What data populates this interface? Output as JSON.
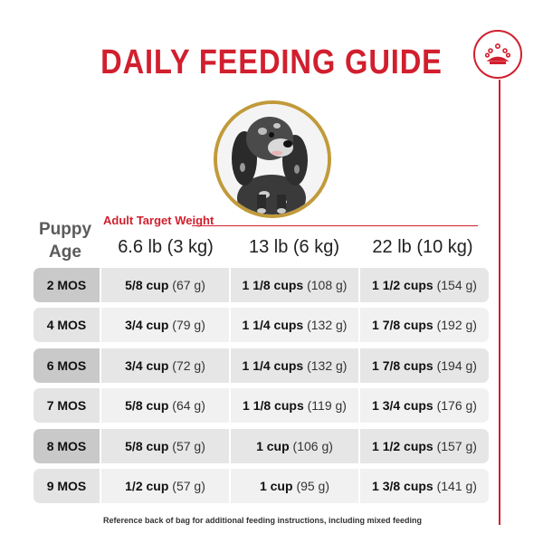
{
  "title": "DAILY FEEDING GUIDE",
  "header": {
    "age_line1": "Puppy",
    "age_line2": "Age",
    "target_label": "Adult Target Weight",
    "weights": [
      "6.6 lb (3 kg)",
      "13 lb (6 kg)",
      "22 lb (10 kg)"
    ]
  },
  "rows": [
    {
      "age": "2 MOS",
      "values": [
        {
          "amount": "5/8 cup",
          "grams": "(67 g)"
        },
        {
          "amount": "1 1/8 cups",
          "grams": "(108 g)"
        },
        {
          "amount": "1 1/2 cups",
          "grams": "(154 g)"
        }
      ]
    },
    {
      "age": "4 MOS",
      "values": [
        {
          "amount": "3/4 cup",
          "grams": "(79 g)"
        },
        {
          "amount": "1 1/4 cups",
          "grams": "(132 g)"
        },
        {
          "amount": "1 7/8 cups",
          "grams": "(192 g)"
        }
      ]
    },
    {
      "age": "6 MOS",
      "values": [
        {
          "amount": "3/4 cup",
          "grams": "(72 g)"
        },
        {
          "amount": "1 1/4 cups",
          "grams": "(132 g)"
        },
        {
          "amount": "1 7/8 cups",
          "grams": "(194 g)"
        }
      ]
    },
    {
      "age": "7 MOS",
      "values": [
        {
          "amount": "5/8 cup",
          "grams": "(64 g)"
        },
        {
          "amount": "1 1/8 cups",
          "grams": "(119 g)"
        },
        {
          "amount": "1 3/4 cups",
          "grams": "(176 g)"
        }
      ]
    },
    {
      "age": "8 MOS",
      "values": [
        {
          "amount": "5/8 cup",
          "grams": "(57 g)"
        },
        {
          "amount": "1 cup",
          "grams": "(106 g)"
        },
        {
          "amount": "1 1/2 cups",
          "grams": "(157 g)"
        }
      ]
    },
    {
      "age": "9 MOS",
      "values": [
        {
          "amount": "1/2 cup",
          "grams": "(57 g)"
        },
        {
          "amount": "1 cup",
          "grams": "(95 g)"
        },
        {
          "amount": "1 3/8 cups",
          "grams": "(141 g)"
        }
      ]
    }
  ],
  "footnote": "Reference back of bag for additional feeding instructions, including mixed feeding",
  "icons": {
    "brand": "crown-icon",
    "portrait": "puppy-photo"
  },
  "colors": {
    "accent": "#d11f2e",
    "gold_ring": "#c19a3a",
    "row_dark": "#e6e6e6",
    "row_light": "#f1f1f1"
  }
}
